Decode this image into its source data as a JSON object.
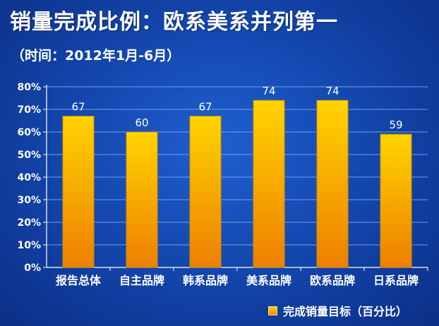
{
  "title": "销量完成比例：欧系美系并列第一",
  "subtitle": "（时间：2012年1月-6月）",
  "colors": {
    "bar_top": "#ffd400",
    "bar_bottom": "#ee7f00",
    "bar_edge": "#c98a00",
    "grid": "#6f9ee8"
  },
  "chart_data": {
    "type": "bar",
    "categories": [
      "报告总体",
      "自主品牌",
      "韩系品牌",
      "美系品牌",
      "欧系品牌",
      "日系品牌"
    ],
    "values": [
      67,
      60,
      67,
      74,
      74,
      59
    ],
    "ylim": [
      0,
      80
    ],
    "yticks": [
      "0%",
      "10%",
      "20%",
      "30%",
      "40%",
      "50%",
      "60%",
      "70%",
      "80%"
    ],
    "grid": true,
    "legend": {
      "position": "bottom-right",
      "label": "完成销量目标（百分比）"
    }
  }
}
